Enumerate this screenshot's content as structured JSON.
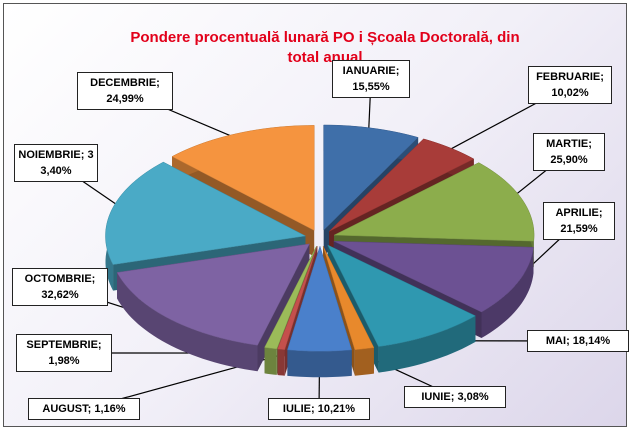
{
  "chart_data": {
    "type": "pie3d",
    "title": "Pondere procentuală lunară PO i Școala Doctorală, din total anual",
    "categories": [
      "IANUARIE",
      "FEBRUARIE",
      "MARTIE",
      "APRILIE",
      "MAI",
      "IUNIE",
      "IULIE",
      "AUGUST",
      "SEPTEMBRIE",
      "OCTOMBRIE",
      "NOIEMBRIE",
      "DECEMBRIE"
    ],
    "values": [
      15.55,
      10.02,
      25.9,
      21.59,
      18.14,
      3.08,
      10.21,
      1.16,
      1.98,
      32.62,
      33.4,
      24.99
    ],
    "value_labels": [
      "15,55%",
      "10,02%",
      "25,90%",
      "21,59%",
      "18,14%",
      "3,08%",
      "10,21%",
      "1,16%",
      "1,98%",
      "32,62%",
      "33,40%",
      "24,99%"
    ],
    "label_separator": ";",
    "colors": [
      "#3f6fa9",
      "#a83c39",
      "#8cad4c",
      "#6c5193",
      "#2f98b0",
      "#e8892c",
      "#4a80cb",
      "#c4504c",
      "#9bbb59",
      "#7e63a3",
      "#4aaac6",
      "#f5943f"
    ]
  }
}
